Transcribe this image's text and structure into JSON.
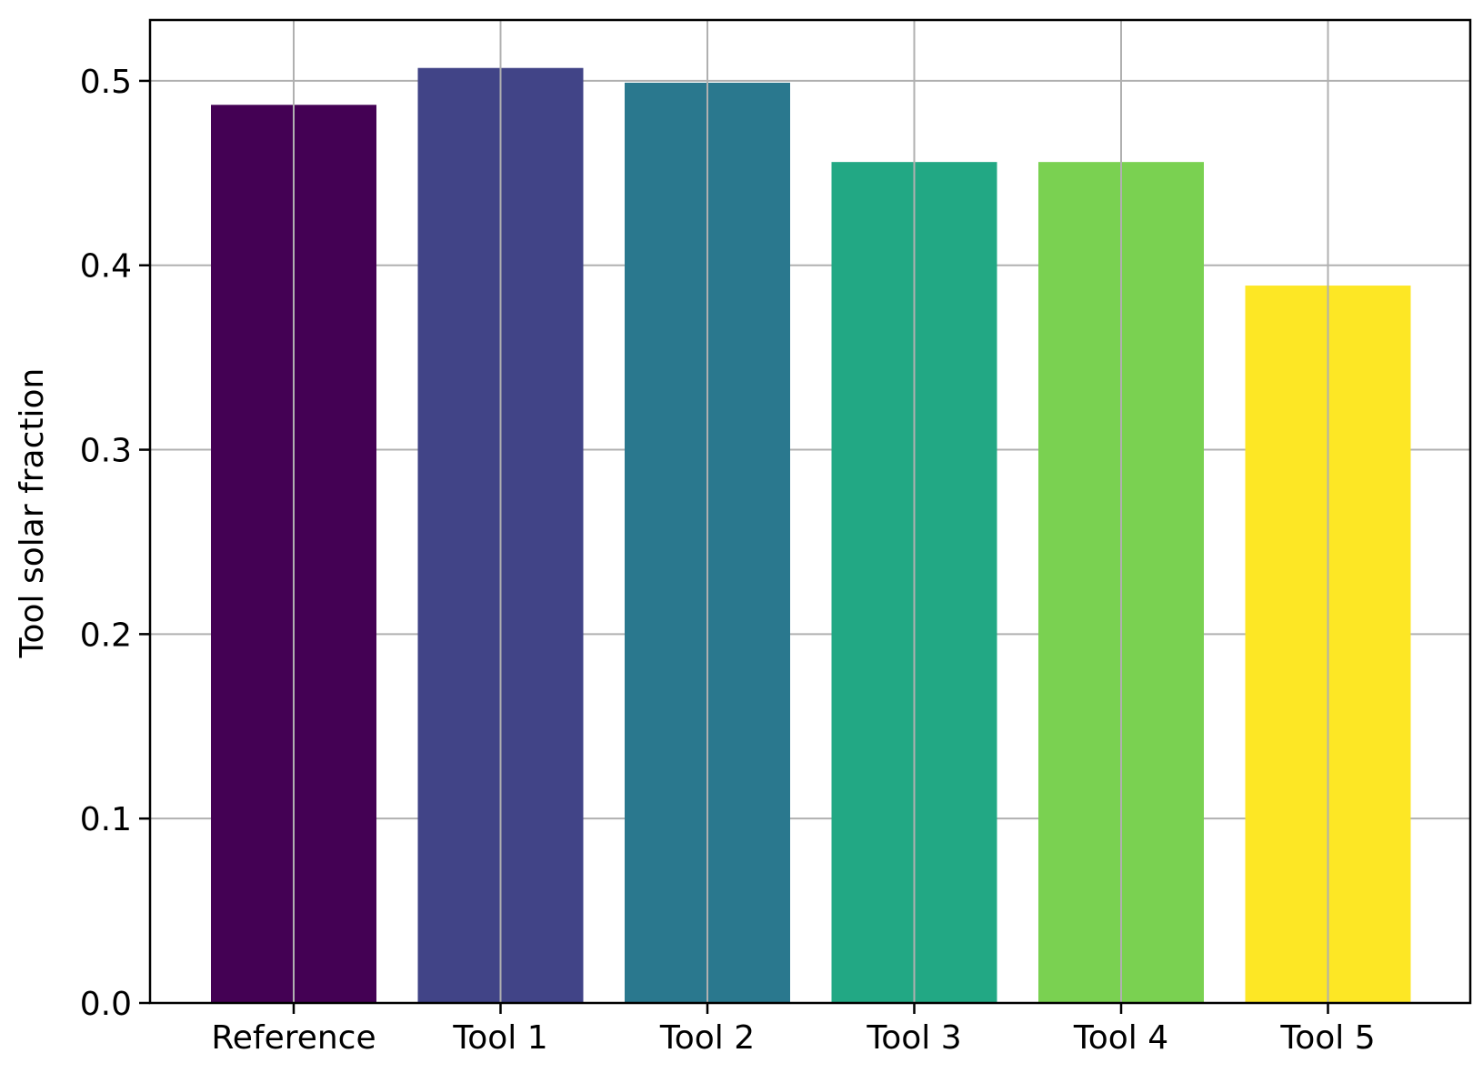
{
  "chart_data": {
    "type": "bar",
    "title": "",
    "xlabel": "",
    "ylabel": "Tool solar fraction",
    "categories": [
      "Reference",
      "Tool 1",
      "Tool 2",
      "Tool 3",
      "Tool 4",
      "Tool 5"
    ],
    "values": [
      0.487,
      0.507,
      0.499,
      0.456,
      0.456,
      0.389
    ],
    "colors": [
      "#440154",
      "#414487",
      "#2a788e",
      "#22a884",
      "#7ad151",
      "#fde725"
    ],
    "ylim": [
      0,
      0.533
    ],
    "yticks": [
      0.0,
      0.1,
      0.2,
      0.3,
      0.4,
      0.5
    ],
    "ytick_labels": [
      "0.0",
      "0.1",
      "0.2",
      "0.3",
      "0.4",
      "0.5"
    ],
    "grid": true,
    "grid_color": "#b0b0b0",
    "legend": "none"
  }
}
